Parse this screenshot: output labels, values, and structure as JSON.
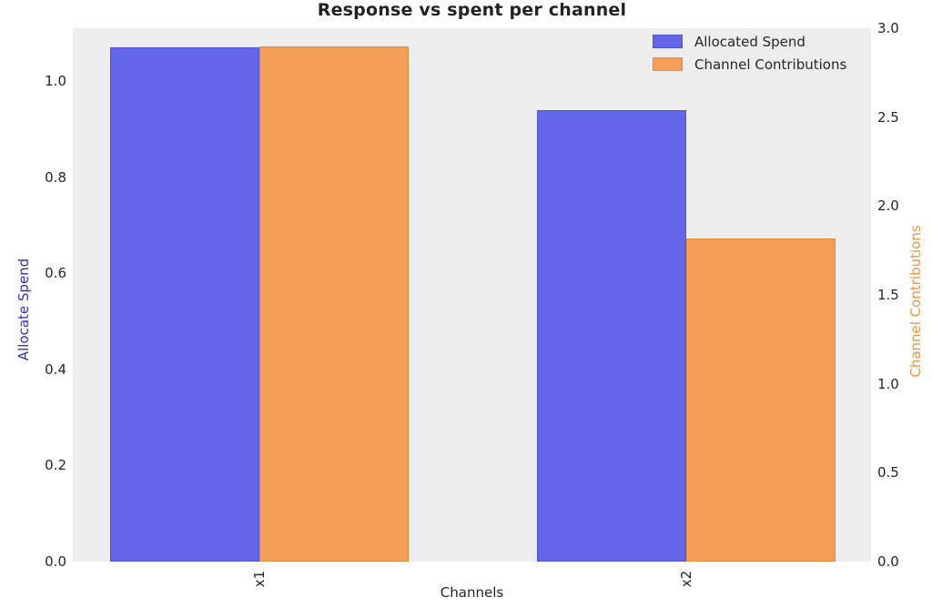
{
  "figure": {
    "background": "#ffffff",
    "plot_background": "#ededee"
  },
  "chart_data": {
    "type": "bar",
    "title": "Response vs spent per channel",
    "xlabel": "Channels",
    "categories": [
      "x1",
      "x2"
    ],
    "series": [
      {
        "name": "Allocated Spend",
        "axis": "left",
        "color": "#6366e8",
        "edge_color": "#5056d6",
        "values": [
          1.07,
          0.94
        ]
      },
      {
        "name": "Channel Contributions",
        "axis": "right",
        "color": "#f49e58",
        "edge_color": "#e28d3c",
        "values": [
          2.9,
          1.82
        ]
      }
    ],
    "left_axis": {
      "label": "Allocate Spend",
      "label_color": "#3030cf",
      "ticks": [
        0.0,
        0.2,
        0.4,
        0.6,
        0.8,
        1.0
      ],
      "tick_labels": [
        "0.0",
        "0.2",
        "0.4",
        "0.6",
        "0.8",
        "1.0"
      ],
      "ylim": [
        0,
        1.11
      ]
    },
    "right_axis": {
      "label": "Channel Contributions",
      "label_color": "#ec9543",
      "ticks": [
        0.0,
        0.5,
        1.0,
        1.5,
        2.0,
        2.5,
        3.0
      ],
      "tick_labels": [
        "0.0",
        "0.5",
        "1.0",
        "1.5",
        "2.0",
        "2.5",
        "3.0"
      ],
      "ylim": [
        0,
        3.0
      ]
    },
    "legend": {
      "position": "upper right",
      "entries": [
        "Allocated Spend",
        "Channel Contributions"
      ]
    },
    "grid": false
  }
}
